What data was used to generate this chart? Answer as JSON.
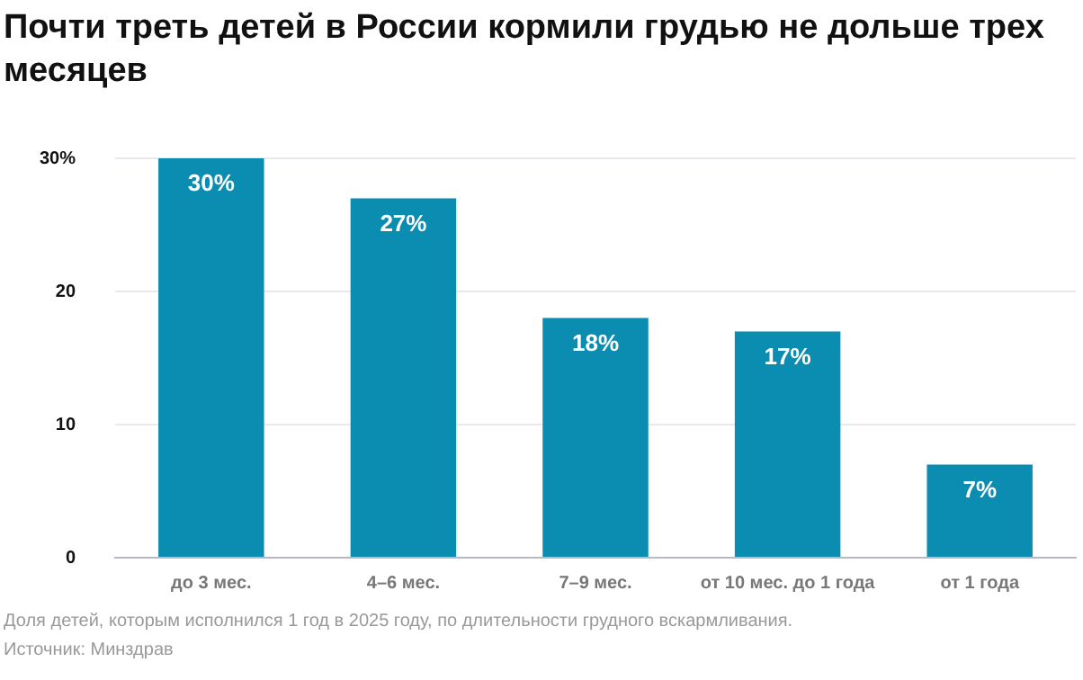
{
  "chart_data": {
    "type": "bar",
    "title": "Почти треть детей в России кормили грудью не дольше трех месяцев",
    "categories": [
      "до 3 мес.",
      "4–6 мес.",
      "7–9 мес.",
      "от 10 мес. до 1 года",
      "от 1 года"
    ],
    "values": [
      30,
      27,
      18,
      17,
      7
    ],
    "color": "#0a8db0",
    "value_labels": [
      "30%",
      "27%",
      "18%",
      "17%",
      "7%"
    ],
    "ylim": [
      0,
      30
    ],
    "yticks": [
      0,
      10,
      20,
      {
        "value": 30,
        "label": "30%"
      }
    ],
    "grid": "y",
    "annotations": [
      "Доля детей, которым исполнился 1 год в 2025 году, по длительности грудного вскармливания.",
      "Источник: Минздрав"
    ]
  }
}
